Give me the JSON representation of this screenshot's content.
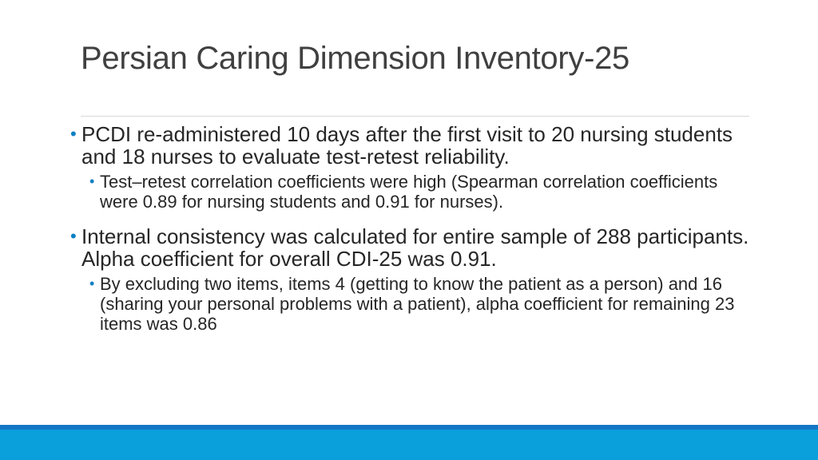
{
  "slide": {
    "title": "Persian Caring Dimension Inventory-25",
    "bullets": [
      {
        "level": 1,
        "text": "PCDI re-administered 10 days after the first visit to 20 nursing students and 18 nurses to evaluate test-retest reliability."
      },
      {
        "level": 2,
        "text": "Test–retest correlation coefficients were high (Spearman correlation coefficients were 0.89 for nursing students and 0.91 for nurses)."
      },
      {
        "level": 1,
        "text": "Internal consistency was calculated for entire sample of 288 participants. Alpha coefficient for overall CDI-25 was 0.91."
      },
      {
        "level": 2,
        "text": "By excluding two items, items 4 (getting to know the patient as a person) and 16 (sharing your personal problems with a patient), alpha coefficient for remaining 23 items was 0.86"
      }
    ],
    "bullet_glyph": "•",
    "colors": {
      "accent": "#0e7fc4",
      "title": "#404040",
      "body": "#262626",
      "footer_dark": "#1376c4",
      "footer_light": "#0aa0dc"
    }
  }
}
